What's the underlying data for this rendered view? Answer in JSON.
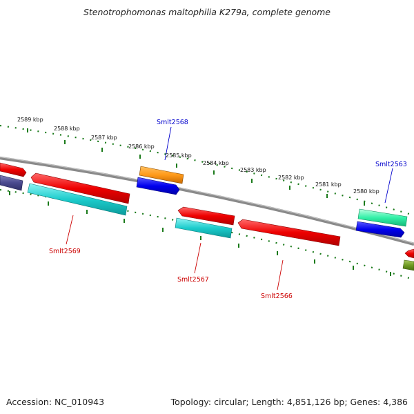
{
  "title": "Stenotrophomonas maltophilia K279a, complete genome",
  "accession": "Accession: NC_010943",
  "topology": "Topology: circular; Length: 4,851,126 bp; Genes: 4,386",
  "colors": {
    "backbone": "#808080",
    "ticks": "#1a7a1a",
    "forward_label": "#0000cc",
    "reverse_label": "#cc0000"
  },
  "tick_labels": [
    "2589 kbp",
    "2588 kbp",
    "2587 kbp",
    "2586 kbp",
    "2585 kbp",
    "2584 kbp",
    "2583 kbp",
    "2582 kbp",
    "2581 kbp",
    "2580 kbp"
  ],
  "gene_labels": [
    "Smlt2568",
    "Smlt2563",
    "Smlt2569",
    "Smlt2567",
    "Smlt2566"
  ]
}
